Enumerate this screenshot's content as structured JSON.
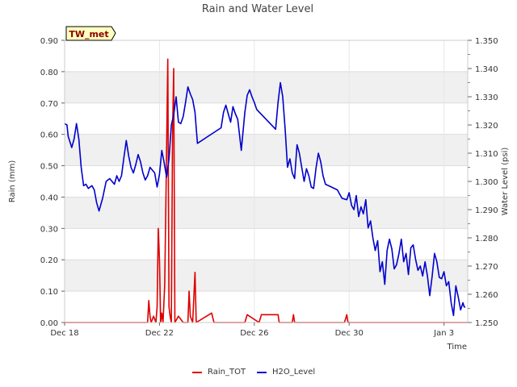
{
  "chart_data": {
    "type": "line",
    "title": "Rain and Water Level",
    "site_label": "TW_met",
    "xlabel": "Time",
    "ylabel_left": "Rain (mm)",
    "ylabel_right": "Water Level (psi)",
    "x_range_days": [
      0,
      17
    ],
    "x_ticks": [
      {
        "day": 0,
        "label": "Dec 18"
      },
      {
        "day": 4,
        "label": "Dec 22"
      },
      {
        "day": 8,
        "label": "Dec 26"
      },
      {
        "day": 12,
        "label": "Dec 30"
      },
      {
        "day": 16,
        "label": "Jan 3"
      }
    ],
    "ylim_left": [
      0,
      0.9
    ],
    "yticks_left": [
      "0.00",
      "0.10",
      "0.20",
      "0.30",
      "0.40",
      "0.50",
      "0.60",
      "0.70",
      "0.80",
      "0.90"
    ],
    "ylim_right": [
      1.25,
      1.35
    ],
    "yticks_right": [
      "1.250",
      "1.260",
      "1.270",
      "1.280",
      "1.290",
      "1.300",
      "1.310",
      "1.320",
      "1.330",
      "1.340",
      "1.350"
    ],
    "legend": [
      {
        "name": "Rain_TOT",
        "color": "#dd0000"
      },
      {
        "name": "H2O_Level",
        "color": "#0000cc"
      }
    ],
    "series": [
      {
        "name": "Rain_TOT",
        "axis": "left",
        "color": "#dd0000",
        "points": [
          [
            0,
            0
          ],
          [
            3.5,
            0
          ],
          [
            3.55,
            0.07
          ],
          [
            3.6,
            0.02
          ],
          [
            3.65,
            0
          ],
          [
            3.75,
            0.02
          ],
          [
            3.85,
            0
          ],
          [
            3.9,
            0.05
          ],
          [
            3.95,
            0.3
          ],
          [
            4.0,
            0.2
          ],
          [
            4.05,
            0
          ],
          [
            4.1,
            0.03
          ],
          [
            4.15,
            0
          ],
          [
            4.22,
            0.12
          ],
          [
            4.28,
            0.43
          ],
          [
            4.35,
            0.84
          ],
          [
            4.4,
            0.05
          ],
          [
            4.45,
            0.02
          ],
          [
            4.5,
            0
          ],
          [
            4.55,
            0.6
          ],
          [
            4.6,
            0.81
          ],
          [
            4.65,
            0
          ],
          [
            4.8,
            0.02
          ],
          [
            5.0,
            0
          ],
          [
            5.2,
            0
          ],
          [
            5.25,
            0.1
          ],
          [
            5.3,
            0.02
          ],
          [
            5.4,
            0
          ],
          [
            5.5,
            0.16
          ],
          [
            5.55,
            0
          ],
          [
            6.2,
            0.03
          ],
          [
            6.3,
            0
          ],
          [
            7.6,
            0
          ],
          [
            7.7,
            0.025
          ],
          [
            8.2,
            0
          ],
          [
            8.3,
            0.025
          ],
          [
            9.0,
            0.025
          ],
          [
            9.05,
            0
          ],
          [
            9.6,
            0
          ],
          [
            9.65,
            0.025
          ],
          [
            9.7,
            0
          ],
          [
            11.8,
            0
          ],
          [
            11.9,
            0.025
          ],
          [
            11.95,
            0
          ],
          [
            17,
            0
          ]
        ]
      },
      {
        "name": "H2O_Level",
        "axis": "right",
        "color": "#0000cc",
        "points": [
          [
            0,
            1.3205
          ],
          [
            0.1,
            1.32
          ],
          [
            0.15,
            1.316
          ],
          [
            0.3,
            1.312
          ],
          [
            0.4,
            1.315
          ],
          [
            0.5,
            1.3205
          ],
          [
            0.6,
            1.315
          ],
          [
            0.7,
            1.305
          ],
          [
            0.8,
            1.2985
          ],
          [
            0.9,
            1.299
          ],
          [
            1.0,
            1.2975
          ],
          [
            1.15,
            1.2985
          ],
          [
            1.25,
            1.297
          ],
          [
            1.35,
            1.2925
          ],
          [
            1.45,
            1.2895
          ],
          [
            1.6,
            1.294
          ],
          [
            1.75,
            1.3
          ],
          [
            1.9,
            1.301
          ],
          [
            2.0,
            1.3
          ],
          [
            2.1,
            1.299
          ],
          [
            2.2,
            1.302
          ],
          [
            2.3,
            1.3
          ],
          [
            2.4,
            1.302
          ],
          [
            2.5,
            1.3085
          ],
          [
            2.6,
            1.3145
          ],
          [
            2.7,
            1.309
          ],
          [
            2.8,
            1.305
          ],
          [
            2.9,
            1.303
          ],
          [
            3.0,
            1.306
          ],
          [
            3.1,
            1.3095
          ],
          [
            3.2,
            1.307
          ],
          [
            3.3,
            1.303
          ],
          [
            3.4,
            1.3005
          ],
          [
            3.5,
            1.302
          ],
          [
            3.6,
            1.305
          ],
          [
            3.7,
            1.304
          ],
          [
            3.8,
            1.303
          ],
          [
            3.9,
            1.298
          ],
          [
            4.0,
            1.3025
          ],
          [
            4.1,
            1.311
          ],
          [
            4.2,
            1.3065
          ],
          [
            4.3,
            1.3015
          ],
          [
            4.4,
            1.308
          ],
          [
            4.5,
            1.32
          ],
          [
            4.6,
            1.3235
          ],
          [
            4.7,
            1.33
          ],
          [
            4.8,
            1.321
          ],
          [
            4.9,
            1.3205
          ],
          [
            5.0,
            1.323
          ],
          [
            5.1,
            1.328
          ],
          [
            5.2,
            1.3335
          ],
          [
            5.3,
            1.331
          ],
          [
            5.4,
            1.329
          ],
          [
            5.5,
            1.3245
          ],
          [
            5.6,
            1.3135
          ],
          [
            6.6,
            1.319
          ],
          [
            6.7,
            1.3245
          ],
          [
            6.8,
            1.327
          ],
          [
            6.9,
            1.324
          ],
          [
            7.0,
            1.321
          ],
          [
            7.1,
            1.3265
          ],
          [
            7.2,
            1.324
          ],
          [
            7.3,
            1.322
          ],
          [
            7.45,
            1.311
          ],
          [
            7.6,
            1.3245
          ],
          [
            7.7,
            1.3305
          ],
          [
            7.8,
            1.3325
          ],
          [
            7.9,
            1.33
          ],
          [
            8.0,
            1.328
          ],
          [
            8.1,
            1.3255
          ],
          [
            8.9,
            1.3185
          ],
          [
            9.0,
            1.328
          ],
          [
            9.1,
            1.335
          ],
          [
            9.2,
            1.33
          ],
          [
            9.3,
            1.3185
          ],
          [
            9.4,
            1.305
          ],
          [
            9.5,
            1.308
          ],
          [
            9.6,
            1.303
          ],
          [
            9.7,
            1.301
          ],
          [
            9.8,
            1.313
          ],
          [
            9.9,
            1.31
          ],
          [
            10.0,
            1.305
          ],
          [
            10.1,
            1.3
          ],
          [
            10.2,
            1.3045
          ],
          [
            10.3,
            1.302
          ],
          [
            10.4,
            1.298
          ],
          [
            10.5,
            1.2975
          ],
          [
            10.6,
            1.3045
          ],
          [
            10.7,
            1.31
          ],
          [
            10.8,
            1.307
          ],
          [
            10.9,
            1.302
          ],
          [
            11.0,
            1.299
          ],
          [
            11.5,
            1.297
          ],
          [
            11.7,
            1.294
          ],
          [
            11.9,
            1.2935
          ],
          [
            12.0,
            1.296
          ],
          [
            12.1,
            1.2915
          ],
          [
            12.2,
            1.29
          ],
          [
            12.3,
            1.295
          ],
          [
            12.4,
            1.2875
          ],
          [
            12.5,
            1.291
          ],
          [
            12.6,
            1.2885
          ],
          [
            12.7,
            1.2935
          ],
          [
            12.8,
            1.2835
          ],
          [
            12.9,
            1.286
          ],
          [
            13.0,
            1.28
          ],
          [
            13.1,
            1.2755
          ],
          [
            13.2,
            1.279
          ],
          [
            13.3,
            1.268
          ],
          [
            13.4,
            1.2715
          ],
          [
            13.5,
            1.2635
          ],
          [
            13.6,
            1.2755
          ],
          [
            13.7,
            1.2795
          ],
          [
            13.8,
            1.276
          ],
          [
            13.9,
            1.269
          ],
          [
            14.0,
            1.2705
          ],
          [
            14.1,
            1.2745
          ],
          [
            14.2,
            1.2795
          ],
          [
            14.3,
            1.2715
          ],
          [
            14.4,
            1.2745
          ],
          [
            14.5,
            1.267
          ],
          [
            14.6,
            1.2765
          ],
          [
            14.7,
            1.2775
          ],
          [
            14.8,
            1.2725
          ],
          [
            14.9,
            1.2685
          ],
          [
            15.0,
            1.27
          ],
          [
            15.1,
            1.2665
          ],
          [
            15.2,
            1.2715
          ],
          [
            15.3,
            1.2665
          ],
          [
            15.4,
            1.2595
          ],
          [
            15.5,
            1.2665
          ],
          [
            15.6,
            1.2745
          ],
          [
            15.7,
            1.2715
          ],
          [
            15.8,
            1.266
          ],
          [
            15.9,
            1.2655
          ],
          [
            16.0,
            1.268
          ],
          [
            16.1,
            1.263
          ],
          [
            16.2,
            1.2645
          ],
          [
            16.3,
            1.257
          ],
          [
            16.4,
            1.2525
          ],
          [
            16.5,
            1.263
          ],
          [
            16.6,
            1.259
          ],
          [
            16.7,
            1.2545
          ],
          [
            16.8,
            1.257
          ],
          [
            16.85,
            1.2555
          ],
          [
            16.9,
            1.2555
          ]
        ]
      }
    ]
  }
}
